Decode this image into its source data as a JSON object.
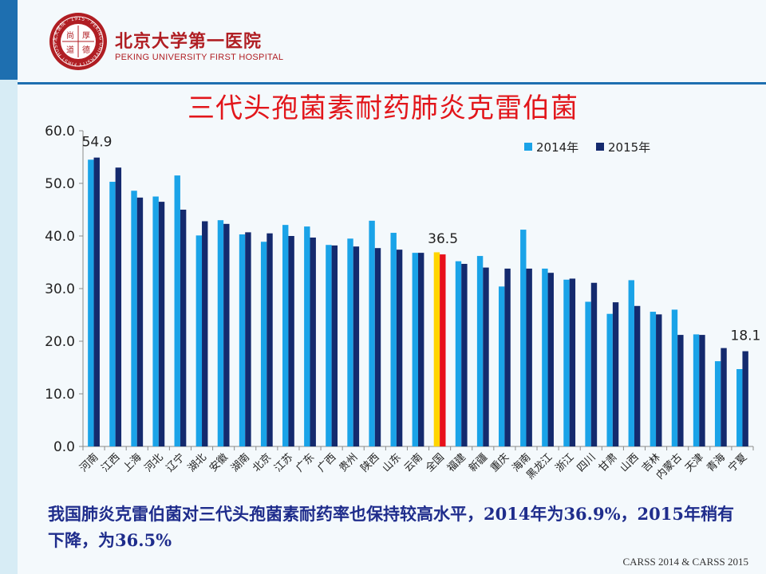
{
  "header": {
    "logo_seal_text": "北大医院 · 1915 · PEKING UNIVERSITY FIRST HOSPITAL",
    "logo_seal_chars": [
      "尚",
      "厚",
      "道",
      "德"
    ],
    "logo_name": "北京大学第一医院",
    "logo_eng": "PEKING UNIVERSITY FIRST HOSPITAL"
  },
  "title": "三代头孢菌素耐药肺炎克雷伯菌",
  "caption": "我国肺炎克雷伯菌对三代头孢菌素耐药率也保持较高水平，2014年为36.9%，2015年稍有下降，为36.5%",
  "footer": "CARSS 2014 & CARSS 2015",
  "colors": {
    "series_2014": "#1aa3e8",
    "series_2015": "#142a6e",
    "highlight_2014": "#ffd500",
    "highlight_2015": "#e8101a",
    "title": "#e2161b",
    "caption": "#1f2d8c",
    "brand": "#b01e23"
  },
  "chart_data": {
    "type": "bar",
    "title": "",
    "xlabel": "",
    "ylabel": "",
    "ylim": [
      0,
      60
    ],
    "yticks": [
      "0.0",
      "10.0",
      "20.0",
      "30.0",
      "40.0",
      "50.0",
      "60.0"
    ],
    "grid": false,
    "legend_position": "top-right",
    "highlight_category": "全国",
    "categories": [
      "河南",
      "江西",
      "上海",
      "河北",
      "辽宁",
      "湖北",
      "安徽",
      "湖南",
      "北京",
      "江苏",
      "广东",
      "广西",
      "贵州",
      "陕西",
      "山东",
      "云南",
      "全国",
      "福建",
      "新疆",
      "重庆",
      "海南",
      "黑龙江",
      "浙江",
      "四川",
      "甘肃",
      "山西",
      "吉林",
      "内蒙古",
      "天津",
      "青海",
      "宁夏"
    ],
    "series": [
      {
        "name": "2014年",
        "values": [
          54.5,
          50.3,
          48.6,
          47.5,
          51.5,
          40.1,
          43.0,
          40.3,
          38.9,
          42.1,
          41.8,
          38.3,
          39.5,
          42.9,
          40.6,
          36.8,
          36.9,
          35.2,
          36.2,
          30.4,
          41.2,
          33.8,
          31.7,
          27.5,
          25.2,
          31.6,
          25.6,
          26.0,
          21.3,
          16.2,
          14.7
        ]
      },
      {
        "name": "2015年",
        "values": [
          54.9,
          53.0,
          47.3,
          46.5,
          45.0,
          42.8,
          42.3,
          40.7,
          40.5,
          40.0,
          39.7,
          38.2,
          38.0,
          37.7,
          37.4,
          36.8,
          36.5,
          34.7,
          34.0,
          33.8,
          33.8,
          33.0,
          31.9,
          31.1,
          27.4,
          26.7,
          25.1,
          21.2,
          21.2,
          18.7,
          18.1
        ]
      }
    ],
    "annotations": [
      {
        "category": "河南",
        "series": "2015年",
        "text": "54.9"
      },
      {
        "category": "全国",
        "series": "2015年",
        "text": "36.5"
      },
      {
        "category": "宁夏",
        "series": "2015年",
        "text": "18.1"
      }
    ]
  }
}
